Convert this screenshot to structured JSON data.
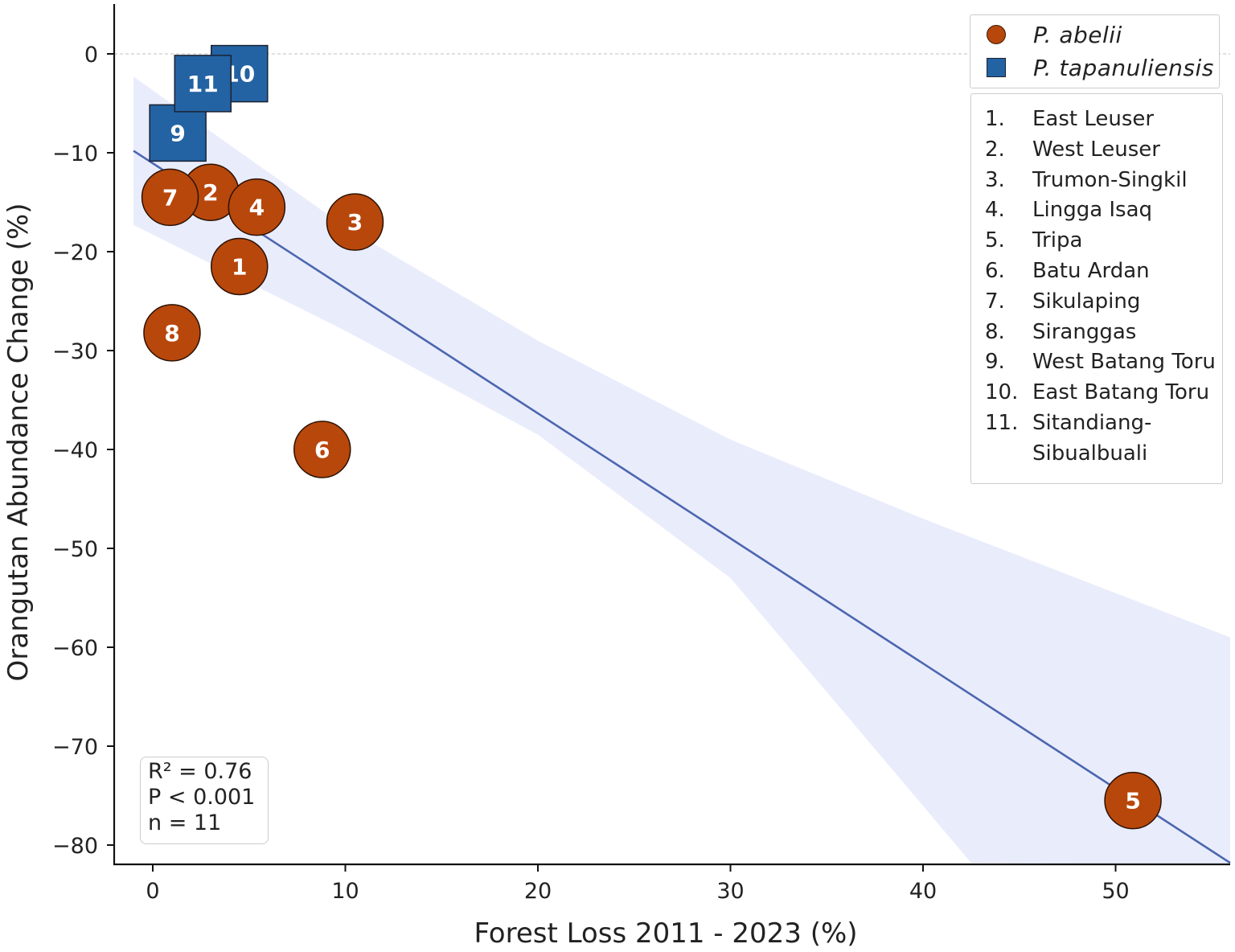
{
  "chart_data": {
    "type": "scatter",
    "xlabel": "Forest Loss 2011 - 2023  (%)",
    "ylabel": "Orangutan Abundance Change (%)",
    "xlim": [
      -2,
      56
    ],
    "ylim": [
      -82,
      5
    ],
    "xticks": [
      "0",
      "10",
      "20",
      "30",
      "40",
      "50"
    ],
    "yticks": [
      "0",
      "−10",
      "−20",
      "−30",
      "−40",
      "−50",
      "−60",
      "−70",
      "−80"
    ],
    "series": [
      {
        "name": "P. abelii",
        "marker": "circle",
        "color": "#b8470b",
        "points": [
          {
            "id": "1",
            "x": 4.5,
            "y": -21.5
          },
          {
            "id": "2",
            "x": 3.0,
            "y": -14.0
          },
          {
            "id": "3",
            "x": 10.5,
            "y": -17.0
          },
          {
            "id": "4",
            "x": 5.4,
            "y": -15.5
          },
          {
            "id": "5",
            "x": 50.9,
            "y": -75.5
          },
          {
            "id": "6",
            "x": 8.8,
            "y": -40.0
          },
          {
            "id": "7",
            "x": 0.9,
            "y": -14.5
          },
          {
            "id": "8",
            "x": 1.0,
            "y": -28.2
          }
        ]
      },
      {
        "name": "P. tapanuliensis",
        "marker": "square",
        "color": "#2363a3",
        "points": [
          {
            "id": "9",
            "x": 1.3,
            "y": -8.0
          },
          {
            "id": "10",
            "x": 4.5,
            "y": -2.0
          },
          {
            "id": "11",
            "x": 2.6,
            "y": -3.0
          }
        ]
      }
    ],
    "regression": {
      "x": [
        -1,
        56
      ],
      "y": [
        -9.8,
        -81.8
      ],
      "ci_lower": [
        {
          "x": -1,
          "y": -17.3
        },
        {
          "x": 10,
          "y": -28
        },
        {
          "x": 20,
          "y": -38.5
        },
        {
          "x": 30,
          "y": -53
        },
        {
          "x": 42.5,
          "y": -81.8
        }
      ],
      "ci_upper": [
        {
          "x": -1,
          "y": -2.3
        },
        {
          "x": 10,
          "y": -17.5
        },
        {
          "x": 20,
          "y": -29
        },
        {
          "x": 30,
          "y": -39
        },
        {
          "x": 40,
          "y": -47
        },
        {
          "x": 56,
          "y": -59
        }
      ],
      "color": "#4c66b0",
      "band_color": "#e9ecfb"
    },
    "reference_line_y": 0,
    "grid": false
  },
  "species_legend": [
    {
      "label": "P. abelii",
      "marker": "circle"
    },
    {
      "label": "P. tapanuliensis",
      "marker": "square"
    }
  ],
  "site_legend": [
    {
      "num": "1.",
      "name": "East Leuser"
    },
    {
      "num": "2.",
      "name": "West Leuser"
    },
    {
      "num": "3.",
      "name": "Trumon-Singkil"
    },
    {
      "num": "4.",
      "name": "Lingga Isaq"
    },
    {
      "num": "5.",
      "name": "Tripa"
    },
    {
      "num": "6.",
      "name": "Batu Ardan"
    },
    {
      "num": "7.",
      "name": "Sikulaping"
    },
    {
      "num": "8.",
      "name": "Siranggas"
    },
    {
      "num": "9.",
      "name": "West Batang Toru"
    },
    {
      "num": "10.",
      "name": "East Batang Toru"
    },
    {
      "num": "11.",
      "name": "Sitandiang-"
    },
    {
      "num": "",
      "name": "Sibualbuali"
    }
  ],
  "stats": {
    "r2": "R² = 0.76",
    "p": "P < 0.001",
    "n": "n = 11"
  }
}
